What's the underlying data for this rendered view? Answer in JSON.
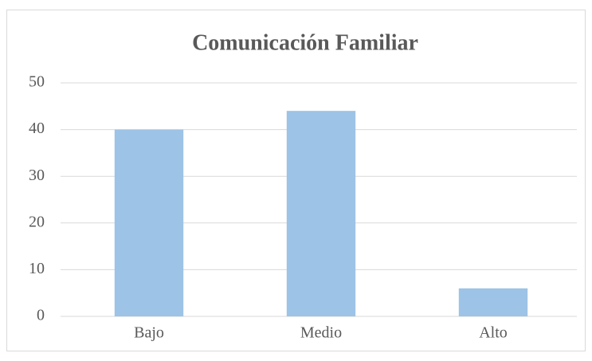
{
  "chart_data": {
    "type": "bar",
    "title": "Comunicación Familiar",
    "categories": [
      "Bajo",
      "Medio",
      "Alto"
    ],
    "values": [
      40,
      44,
      6
    ],
    "color": "#9dc3e6",
    "ylim": [
      0,
      50
    ],
    "yticks": [
      0,
      10,
      20,
      30,
      40,
      50
    ],
    "grid": true
  }
}
